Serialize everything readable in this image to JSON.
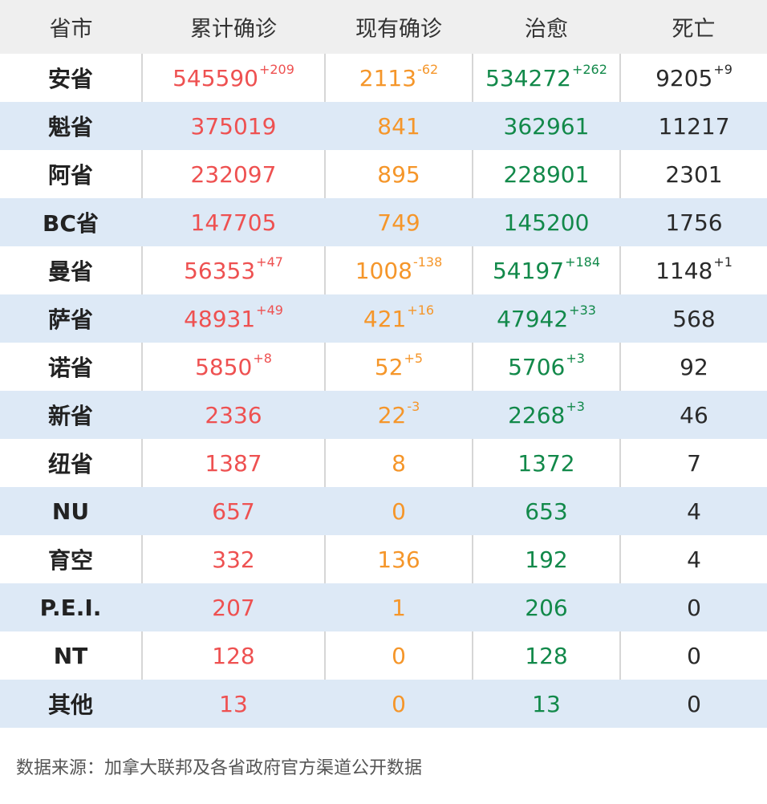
{
  "header": {
    "col_province": "省市",
    "col_cumulative": "累计确诊",
    "col_active": "现有确诊",
    "col_recovered": "治愈",
    "col_deaths": "死亡"
  },
  "rows": [
    {
      "name": "安省",
      "cumulative": "545590",
      "cumulative_delta": "+209",
      "active": "2113",
      "active_delta": "-62",
      "recovered": "534272",
      "recovered_delta": "+262",
      "deaths": "9205",
      "deaths_delta": "+9"
    },
    {
      "name": "魁省",
      "cumulative": "375019",
      "cumulative_delta": "",
      "active": "841",
      "active_delta": "",
      "recovered": "362961",
      "recovered_delta": "",
      "deaths": "11217",
      "deaths_delta": ""
    },
    {
      "name": "阿省",
      "cumulative": "232097",
      "cumulative_delta": "",
      "active": "895",
      "active_delta": "",
      "recovered": "228901",
      "recovered_delta": "",
      "deaths": "2301",
      "deaths_delta": ""
    },
    {
      "name": "BC省",
      "cumulative": "147705",
      "cumulative_delta": "",
      "active": "749",
      "active_delta": "",
      "recovered": "145200",
      "recovered_delta": "",
      "deaths": "1756",
      "deaths_delta": ""
    },
    {
      "name": "曼省",
      "cumulative": "56353",
      "cumulative_delta": "+47",
      "active": "1008",
      "active_delta": "-138",
      "recovered": "54197",
      "recovered_delta": "+184",
      "deaths": "1148",
      "deaths_delta": "+1"
    },
    {
      "name": "萨省",
      "cumulative": "48931",
      "cumulative_delta": "+49",
      "active": "421",
      "active_delta": "+16",
      "recovered": "47942",
      "recovered_delta": "+33",
      "deaths": "568",
      "deaths_delta": ""
    },
    {
      "name": "诺省",
      "cumulative": "5850",
      "cumulative_delta": "+8",
      "active": "52",
      "active_delta": "+5",
      "recovered": "5706",
      "recovered_delta": "+3",
      "deaths": "92",
      "deaths_delta": ""
    },
    {
      "name": "新省",
      "cumulative": "2336",
      "cumulative_delta": "",
      "active": "22",
      "active_delta": "-3",
      "recovered": "2268",
      "recovered_delta": "+3",
      "deaths": "46",
      "deaths_delta": ""
    },
    {
      "name": "纽省",
      "cumulative": "1387",
      "cumulative_delta": "",
      "active": "8",
      "active_delta": "",
      "recovered": "1372",
      "recovered_delta": "",
      "deaths": "7",
      "deaths_delta": ""
    },
    {
      "name": "NU",
      "cumulative": "657",
      "cumulative_delta": "",
      "active": "0",
      "active_delta": "",
      "recovered": "653",
      "recovered_delta": "",
      "deaths": "4",
      "deaths_delta": ""
    },
    {
      "name": "育空",
      "cumulative": "332",
      "cumulative_delta": "",
      "active": "136",
      "active_delta": "",
      "recovered": "192",
      "recovered_delta": "",
      "deaths": "4",
      "deaths_delta": ""
    },
    {
      "name": "P.E.I.",
      "cumulative": "207",
      "cumulative_delta": "",
      "active": "1",
      "active_delta": "",
      "recovered": "206",
      "recovered_delta": "",
      "deaths": "0",
      "deaths_delta": ""
    },
    {
      "name": "NT",
      "cumulative": "128",
      "cumulative_delta": "",
      "active": "0",
      "active_delta": "",
      "recovered": "128",
      "recovered_delta": "",
      "deaths": "0",
      "deaths_delta": ""
    },
    {
      "name": "其他",
      "cumulative": "13",
      "cumulative_delta": "",
      "active": "0",
      "active_delta": "",
      "recovered": "13",
      "recovered_delta": "",
      "deaths": "0",
      "deaths_delta": ""
    }
  ],
  "footer": {
    "source": "数据来源：加拿大联邦及各省政府官方渠道公开数据"
  },
  "colors": {
    "cumulative": "#ee5151",
    "active": "#f5962a",
    "recovered": "#12894a",
    "deaths": "#2a2a2a",
    "stripe": "#dde9f6",
    "header_bg": "#efefef"
  }
}
